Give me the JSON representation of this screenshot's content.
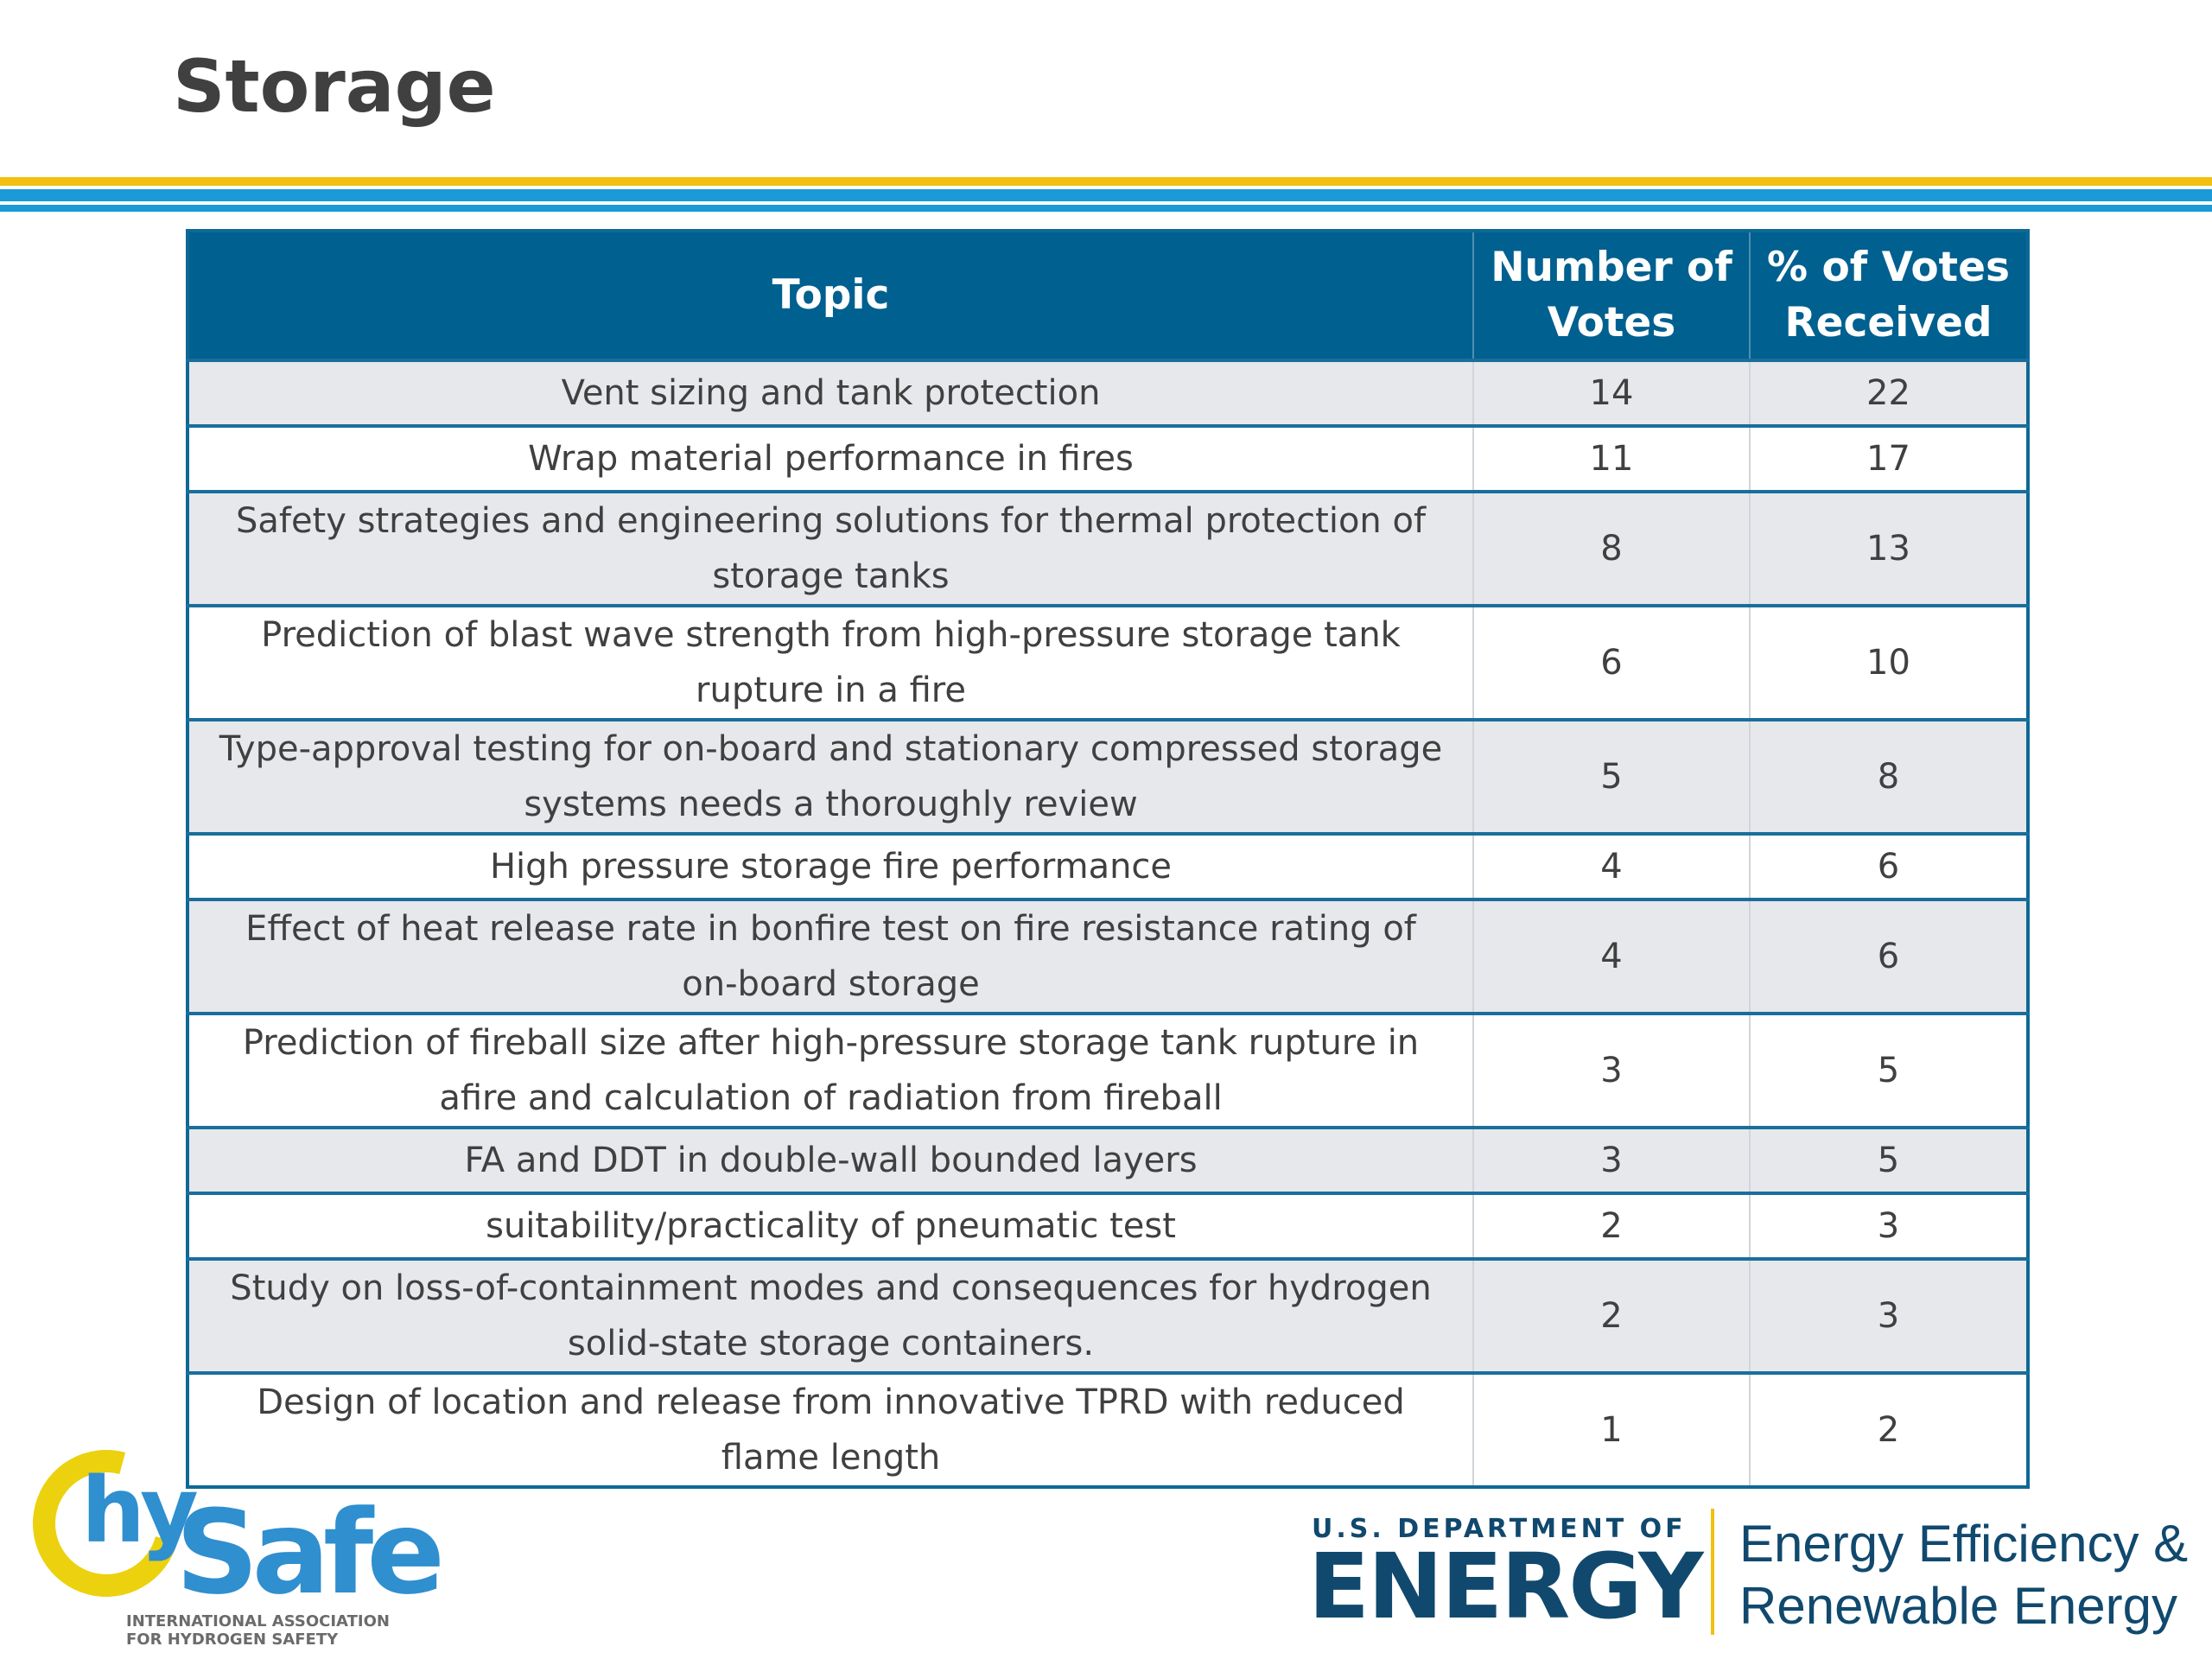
{
  "title": "Storage",
  "table": {
    "headers": {
      "topic": "Topic",
      "votes_line1": "Number of",
      "votes_line2": "Votes",
      "pct_line1": "% of Votes",
      "pct_line2": "Received"
    },
    "rows": [
      {
        "topic_l1": "Vent sizing and tank protection",
        "topic_l2": "",
        "votes": "14",
        "pct": "22"
      },
      {
        "topic_l1": "Wrap material performance in fires",
        "topic_l2": "",
        "votes": "11",
        "pct": "17"
      },
      {
        "topic_l1": "Safety strategies and engineering solutions for thermal protection of",
        "topic_l2": "storage tanks",
        "votes": "8",
        "pct": "13"
      },
      {
        "topic_l1": "Prediction of blast wave strength from high-pressure storage tank",
        "topic_l2": "rupture in a fire",
        "votes": "6",
        "pct": "10"
      },
      {
        "topic_l1": "Type-approval testing for on-board and stationary compressed storage",
        "topic_l2": "systems needs a thoroughly review",
        "votes": "5",
        "pct": "8"
      },
      {
        "topic_l1": "High pressure storage fire performance",
        "topic_l2": "",
        "votes": "4",
        "pct": "6"
      },
      {
        "topic_l1": "Effect of heat release rate in bonfire test on fire resistance rating of",
        "topic_l2": "on-board storage",
        "votes": "4",
        "pct": "6"
      },
      {
        "topic_l1": "Prediction of fireball size after high-pressure storage tank rupture in",
        "topic_l2": "afire and calculation of radiation from fireball",
        "votes": "3",
        "pct": "5"
      },
      {
        "topic_l1": "FA and DDT in double-wall bounded layers",
        "topic_l2": "",
        "votes": "3",
        "pct": "5"
      },
      {
        "topic_l1": "suitability/practicality of pneumatic test",
        "topic_l2": "",
        "votes": "2",
        "pct": "3"
      },
      {
        "topic_l1": "Study on loss-of-containment modes and consequences for hydrogen",
        "topic_l2": "solid-state storage containers.",
        "votes": "2",
        "pct": "3"
      },
      {
        "topic_l1": "Design of location and release from innovative TPRD with reduced",
        "topic_l2": "flame length",
        "votes": "1",
        "pct": "2"
      }
    ]
  },
  "logos": {
    "hysafe": {
      "hy": "hy",
      "safe": "Safe",
      "tagline_l1": "INTERNATIONAL ASSOCIATION",
      "tagline_l2": "FOR HYDROGEN SAFETY"
    },
    "doe": {
      "dept": "U.S. DEPARTMENT OF",
      "energy": "ENERGY",
      "eere_l1": "Energy Efficiency &",
      "eere_l2": "Renewable Energy"
    }
  },
  "colors": {
    "header_bg": "#00608f",
    "row_shade": "#e6e8ec",
    "accent_gold": "#f2c010",
    "accent_blue": "#1a9ad6",
    "doe_navy": "#11496e",
    "hysafe_blue": "#2f8fcf",
    "hysafe_yellow": "#ecd10e"
  }
}
